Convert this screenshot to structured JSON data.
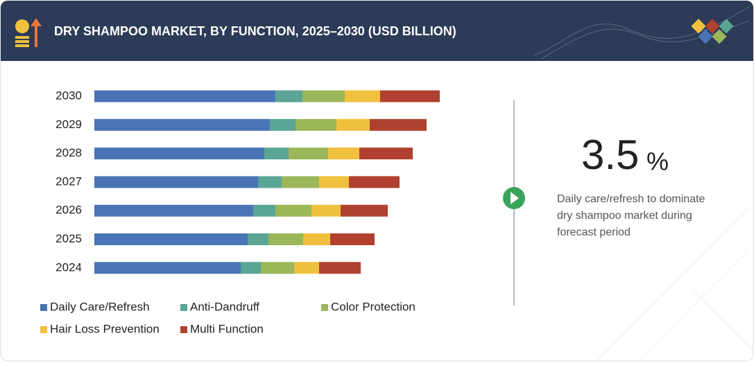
{
  "chart_data": {
    "type": "stacked-bar",
    "title": "DRY SHAMPOO MARKET, BY FUNCTION, 2025–2030 (USD BILLION)",
    "categories": [
      "2030",
      "2029",
      "2028",
      "2027",
      "2026",
      "2025",
      "2024"
    ],
    "series": [
      {
        "name": "Daily Care/Refresh",
        "color": "#4a74b5",
        "values": [
          2.61,
          2.53,
          2.45,
          2.36,
          2.29,
          2.21,
          2.11
        ]
      },
      {
        "name": "Anti-Dandruff",
        "color": "#5aa595",
        "values": [
          0.39,
          0.37,
          0.35,
          0.34,
          0.32,
          0.3,
          0.29
        ]
      },
      {
        "name": "Color Protection",
        "color": "#9bb75a",
        "values": [
          0.61,
          0.59,
          0.57,
          0.54,
          0.52,
          0.5,
          0.48
        ]
      },
      {
        "name": "Hair Loss Prevention",
        "color": "#f0c03f",
        "values": [
          0.51,
          0.48,
          0.45,
          0.43,
          0.42,
          0.39,
          0.36
        ]
      },
      {
        "name": "Multi Function",
        "color": "#b0402f",
        "values": [
          0.86,
          0.82,
          0.77,
          0.73,
          0.68,
          0.64,
          0.6
        ]
      }
    ],
    "highlight": {
      "value": "3.5",
      "unit": "%"
    },
    "description": [
      "Daily care/refresh to dominate",
      "dry shampoo market during",
      "forecast period"
    ]
  }
}
